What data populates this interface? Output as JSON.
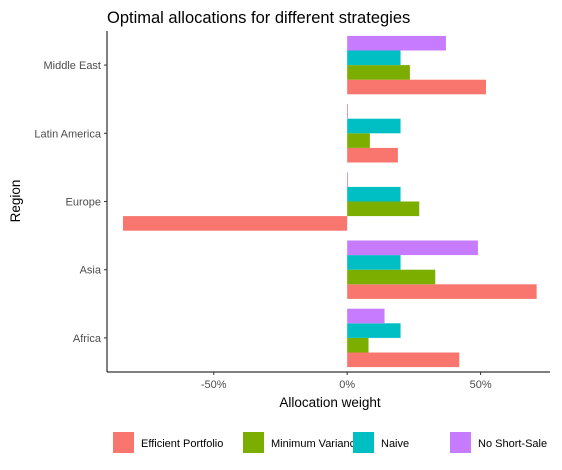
{
  "chart_data": {
    "type": "bar",
    "orientation": "horizontal",
    "title": "Optimal allocations for different strategies",
    "xlabel": "Allocation weight",
    "ylabel": "Region",
    "categories": [
      "Africa",
      "Asia",
      "Europe",
      "Latin America",
      "Middle East"
    ],
    "x_ticks": [
      -0.5,
      0,
      0.5
    ],
    "x_tick_labels": [
      "-50%",
      "0%",
      "50%"
    ],
    "xlim": [
      -0.9,
      0.76
    ],
    "grid": false,
    "legend_position": "bottom",
    "series": [
      {
        "name": "Efficient Portfolio",
        "color": "#F8766D",
        "values": [
          0.42,
          0.71,
          -0.84,
          0.19,
          0.52
        ]
      },
      {
        "name": "Minimum Variance",
        "color": "#7CAE00",
        "values": [
          0.08,
          0.33,
          0.27,
          0.085,
          0.235
        ]
      },
      {
        "name": "Naive",
        "color": "#00BFC4",
        "values": [
          0.2,
          0.2,
          0.2,
          0.2,
          0.2
        ]
      },
      {
        "name": "No Short-Sale",
        "color": "#C77CFF",
        "values": [
          0.14,
          0.49,
          0.0,
          0.002,
          0.37
        ]
      }
    ]
  }
}
